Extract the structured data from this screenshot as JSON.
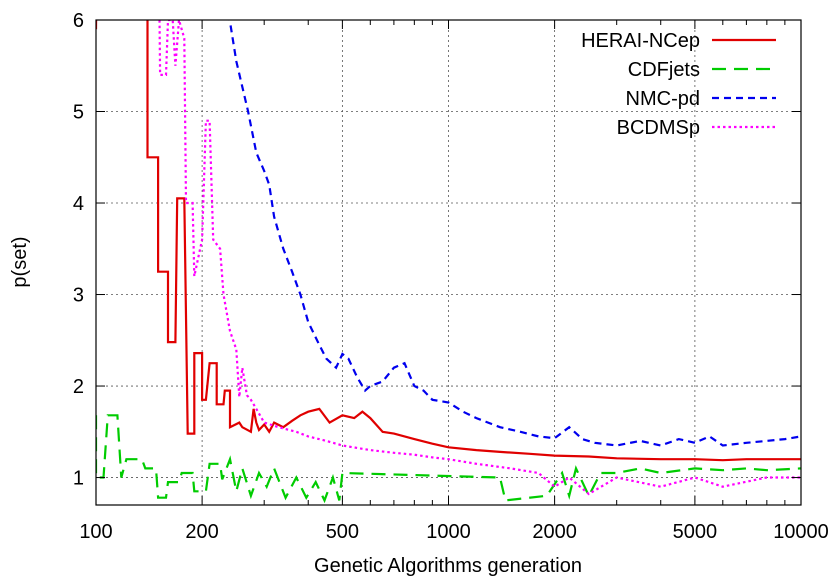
{
  "chart_data": {
    "type": "line",
    "title": "",
    "xlabel": "Genetic Algorithms generation",
    "ylabel": "p(set)",
    "xscale": "log",
    "xlim": [
      100,
      10000
    ],
    "ylim": [
      0.7,
      6
    ],
    "x_ticks": [
      100,
      200,
      500,
      1000,
      2000,
      5000,
      10000
    ],
    "x_tick_labels": [
      "100",
      "200",
      "500",
      "1000",
      "2000",
      "5000",
      "10000"
    ],
    "y_ticks": [
      1,
      2,
      3,
      4,
      5,
      6
    ],
    "y_tick_labels": [
      "1",
      "2",
      "3",
      "4",
      "5",
      "6"
    ],
    "grid": true,
    "legend_position": "top-right",
    "series": [
      {
        "name": "HERAI-NCep",
        "color": "#e00000",
        "dash": "solid",
        "points": [
          [
            100,
            5.9
          ],
          [
            101,
            7.5
          ],
          [
            140,
            7.5
          ],
          [
            140,
            4.5
          ],
          [
            150,
            4.5
          ],
          [
            150,
            3.25
          ],
          [
            160,
            3.25
          ],
          [
            160,
            2.48
          ],
          [
            168,
            2.48
          ],
          [
            170,
            4.05
          ],
          [
            178,
            4.05
          ],
          [
            182,
            1.48
          ],
          [
            190,
            1.48
          ],
          [
            190,
            2.36
          ],
          [
            200,
            2.36
          ],
          [
            200,
            1.85
          ],
          [
            205,
            1.85
          ],
          [
            210,
            2.25
          ],
          [
            220,
            2.25
          ],
          [
            220,
            1.8
          ],
          [
            230,
            1.8
          ],
          [
            232,
            1.95
          ],
          [
            240,
            1.95
          ],
          [
            240,
            1.55
          ],
          [
            255,
            1.6
          ],
          [
            260,
            1.55
          ],
          [
            275,
            1.5
          ],
          [
            280,
            1.75
          ],
          [
            285,
            1.6
          ],
          [
            290,
            1.52
          ],
          [
            300,
            1.58
          ],
          [
            310,
            1.5
          ],
          [
            320,
            1.6
          ],
          [
            340,
            1.55
          ],
          [
            360,
            1.62
          ],
          [
            380,
            1.68
          ],
          [
            400,
            1.72
          ],
          [
            430,
            1.75
          ],
          [
            460,
            1.6
          ],
          [
            500,
            1.68
          ],
          [
            540,
            1.65
          ],
          [
            570,
            1.72
          ],
          [
            600,
            1.65
          ],
          [
            650,
            1.5
          ],
          [
            700,
            1.48
          ],
          [
            800,
            1.42
          ],
          [
            900,
            1.37
          ],
          [
            1000,
            1.33
          ],
          [
            1200,
            1.3
          ],
          [
            1400,
            1.28
          ],
          [
            1700,
            1.26
          ],
          [
            2000,
            1.24
          ],
          [
            2500,
            1.23
          ],
          [
            3000,
            1.21
          ],
          [
            4000,
            1.2
          ],
          [
            5000,
            1.2
          ],
          [
            6000,
            1.19
          ],
          [
            7000,
            1.2
          ],
          [
            8000,
            1.2
          ],
          [
            10000,
            1.2
          ]
        ]
      },
      {
        "name": "CDFjets",
        "color": "#00cc00",
        "dash": "long-dash",
        "points": [
          [
            100,
            1.68
          ],
          [
            100,
            1.0
          ],
          [
            105,
            1.0
          ],
          [
            108,
            1.68
          ],
          [
            115,
            1.68
          ],
          [
            118,
            1.0
          ],
          [
            122,
            1.2
          ],
          [
            135,
            1.2
          ],
          [
            138,
            1.1
          ],
          [
            148,
            1.1
          ],
          [
            150,
            0.78
          ],
          [
            158,
            0.78
          ],
          [
            160,
            0.95
          ],
          [
            172,
            0.95
          ],
          [
            175,
            1.05
          ],
          [
            188,
            1.05
          ],
          [
            190,
            0.85
          ],
          [
            205,
            0.85
          ],
          [
            210,
            1.15
          ],
          [
            225,
            1.15
          ],
          [
            228,
            0.98
          ],
          [
            240,
            1.2
          ],
          [
            250,
            0.85
          ],
          [
            260,
            1.1
          ],
          [
            275,
            0.8
          ],
          [
            290,
            1.05
          ],
          [
            305,
            0.9
          ],
          [
            320,
            1.1
          ],
          [
            345,
            0.78
          ],
          [
            370,
            1.0
          ],
          [
            395,
            0.78
          ],
          [
            420,
            0.95
          ],
          [
            445,
            0.75
          ],
          [
            470,
            1.0
          ],
          [
            490,
            0.75
          ],
          [
            500,
            1.05
          ],
          [
            1400,
            1.0
          ],
          [
            1450,
            0.75
          ],
          [
            1900,
            0.8
          ],
          [
            2100,
            1.05
          ],
          [
            2200,
            0.8
          ],
          [
            2300,
            1.1
          ],
          [
            2500,
            0.8
          ],
          [
            2700,
            1.05
          ],
          [
            3000,
            1.05
          ],
          [
            3500,
            1.1
          ],
          [
            4000,
            1.05
          ],
          [
            5000,
            1.1
          ],
          [
            6000,
            1.08
          ],
          [
            7000,
            1.1
          ],
          [
            8000,
            1.08
          ],
          [
            10000,
            1.1
          ]
        ]
      },
      {
        "name": "NMC-pd",
        "color": "#0000ee",
        "dash": "dash",
        "points": [
          [
            235,
            6.2
          ],
          [
            250,
            5.55
          ],
          [
            270,
            5.0
          ],
          [
            285,
            4.55
          ],
          [
            300,
            4.35
          ],
          [
            310,
            4.2
          ],
          [
            320,
            3.85
          ],
          [
            340,
            3.5
          ],
          [
            360,
            3.25
          ],
          [
            380,
            3.0
          ],
          [
            400,
            2.7
          ],
          [
            430,
            2.45
          ],
          [
            450,
            2.3
          ],
          [
            480,
            2.2
          ],
          [
            500,
            2.35
          ],
          [
            520,
            2.3
          ],
          [
            550,
            2.1
          ],
          [
            580,
            1.95
          ],
          [
            600,
            2.0
          ],
          [
            650,
            2.05
          ],
          [
            700,
            2.2
          ],
          [
            750,
            2.25
          ],
          [
            800,
            2.0
          ],
          [
            850,
            1.95
          ],
          [
            900,
            1.85
          ],
          [
            1000,
            1.82
          ],
          [
            1100,
            1.72
          ],
          [
            1200,
            1.65
          ],
          [
            1400,
            1.55
          ],
          [
            1600,
            1.5
          ],
          [
            1800,
            1.45
          ],
          [
            2000,
            1.43
          ],
          [
            2200,
            1.55
          ],
          [
            2400,
            1.42
          ],
          [
            2600,
            1.38
          ],
          [
            3000,
            1.35
          ],
          [
            3500,
            1.4
          ],
          [
            4000,
            1.35
          ],
          [
            4500,
            1.42
          ],
          [
            5000,
            1.38
          ],
          [
            5500,
            1.45
          ],
          [
            6000,
            1.35
          ],
          [
            7000,
            1.38
          ],
          [
            8000,
            1.4
          ],
          [
            9000,
            1.42
          ],
          [
            10000,
            1.45
          ]
        ]
      },
      {
        "name": "BCDMSp",
        "color": "#ff00ff",
        "dash": "dot",
        "points": [
          [
            150,
            7.5
          ],
          [
            152,
            5.4
          ],
          [
            158,
            5.4
          ],
          [
            160,
            6.0
          ],
          [
            165,
            6.0
          ],
          [
            168,
            5.5
          ],
          [
            172,
            6.0
          ],
          [
            178,
            5.8
          ],
          [
            180,
            4.0
          ],
          [
            188,
            4.0
          ],
          [
            190,
            3.2
          ],
          [
            200,
            3.6
          ],
          [
            205,
            4.9
          ],
          [
            210,
            4.9
          ],
          [
            215,
            3.6
          ],
          [
            225,
            3.5
          ],
          [
            230,
            3.0
          ],
          [
            240,
            2.6
          ],
          [
            250,
            2.4
          ],
          [
            255,
            1.88
          ],
          [
            260,
            2.2
          ],
          [
            268,
            1.9
          ],
          [
            275,
            1.85
          ],
          [
            285,
            1.75
          ],
          [
            300,
            1.6
          ],
          [
            330,
            1.55
          ],
          [
            370,
            1.5
          ],
          [
            400,
            1.45
          ],
          [
            450,
            1.4
          ],
          [
            500,
            1.35
          ],
          [
            600,
            1.3
          ],
          [
            700,
            1.27
          ],
          [
            800,
            1.25
          ],
          [
            900,
            1.22
          ],
          [
            1000,
            1.2
          ],
          [
            1200,
            1.15
          ],
          [
            1500,
            1.1
          ],
          [
            1800,
            1.05
          ],
          [
            2000,
            0.9
          ],
          [
            2200,
            1.0
          ],
          [
            2500,
            0.82
          ],
          [
            3000,
            1.0
          ],
          [
            4000,
            0.9
          ],
          [
            5000,
            1.0
          ],
          [
            6000,
            0.9
          ],
          [
            8000,
            1.0
          ],
          [
            10000,
            1.0
          ]
        ]
      }
    ]
  }
}
